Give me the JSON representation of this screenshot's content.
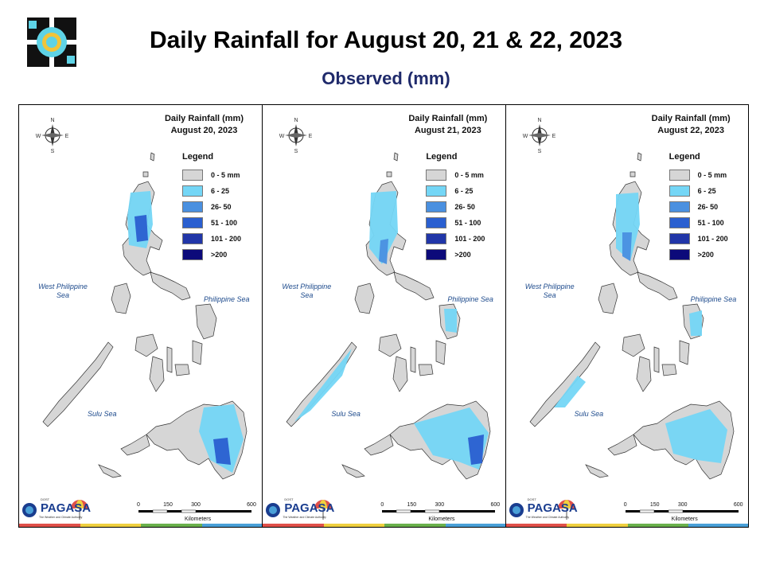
{
  "header": {
    "title": "Daily Rainfall for August 20, 21 & 22, 2023",
    "subtitle": "Observed (mm)"
  },
  "map_common": {
    "map_heading": "Daily Rainfall (mm)",
    "legend_title": "Legend",
    "legend": [
      {
        "label": "0 - 5 mm",
        "color": "#d6d6d6"
      },
      {
        "label": "6 - 25",
        "color": "#74d6f6"
      },
      {
        "label": "26- 50",
        "color": "#4a90e0"
      },
      {
        "label": "51 - 100",
        "color": "#2a5fd0"
      },
      {
        "label": "101 - 200",
        "color": "#2136a8"
      },
      {
        "label": ">200",
        "color": "#0c0a7a"
      }
    ],
    "sea_labels": {
      "west": "West Philippine Sea",
      "philippine": "Philippine Sea",
      "sulu": "Sulu Sea"
    },
    "compass": {
      "n": "N",
      "s": "S",
      "e": "E",
      "w": "W"
    },
    "scale": {
      "ticks": [
        "0",
        "150",
        "300",
        "600"
      ],
      "unit": "Kilometers"
    },
    "brand": {
      "name": "PAGASA",
      "dost": "DOST",
      "tagline": "The Weather and Climate Authority"
    },
    "bottom_bar_colors": [
      "#e0504a",
      "#efd040",
      "#6ab04c",
      "#4aa0d8"
    ]
  },
  "maps": [
    {
      "date": "August 20, 2023"
    },
    {
      "date": "August 21, 2023"
    },
    {
      "date": "August 22, 2023"
    }
  ]
}
